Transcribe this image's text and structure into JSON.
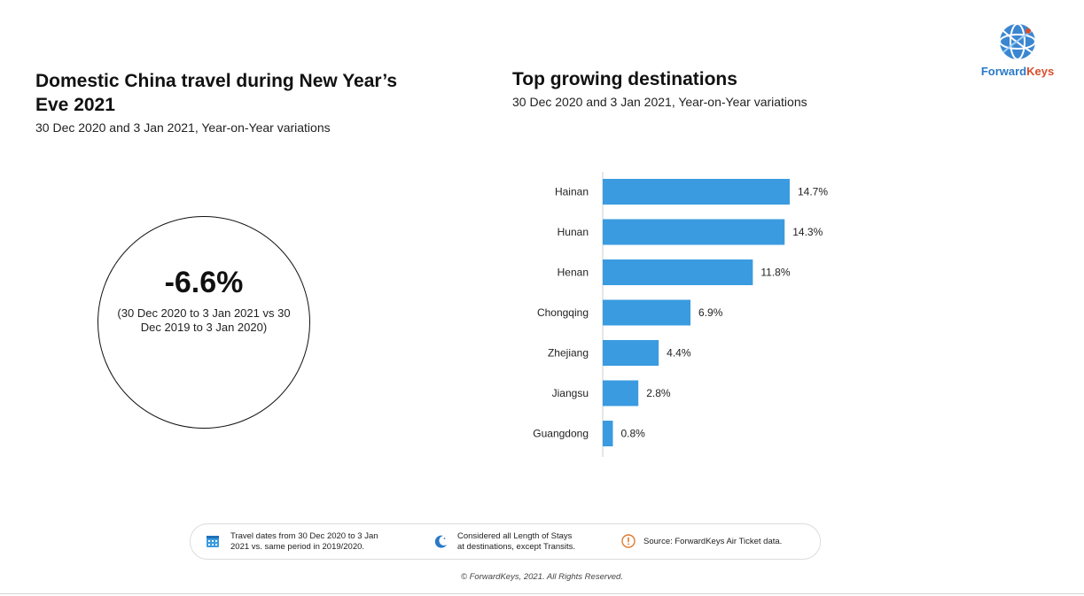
{
  "left_panel": {
    "title": "Domestic China travel during New Year’s Eve 2021",
    "subtitle": "30 Dec 2020 and 3 Jan 2021, Year-on-Year variations",
    "kpi_value": "-6.6%",
    "kpi_note": "(30 Dec 2020 to 3 Jan 2021 vs 30 Dec 2019 to 3 Jan 2020)"
  },
  "logo": {
    "part1": "Forward",
    "part2": "Keys",
    "colors": {
      "forward": "#2a79c7",
      "keys": "#d94e2e"
    }
  },
  "chart_data": {
    "type": "bar",
    "orientation": "horizontal",
    "title": "Top growing destinations",
    "subtitle": "30 Dec 2020 and 3 Jan 2021, Year-on-Year variations",
    "categories": [
      "Hainan",
      "Hunan",
      "Henan",
      "Chongqing",
      "Zhejiang",
      "Jiangsu",
      "Guangdong"
    ],
    "values": [
      14.7,
      14.3,
      11.8,
      6.9,
      4.4,
      2.8,
      0.8
    ],
    "value_labels": [
      "14.7%",
      "14.3%",
      "11.8%",
      "6.9%",
      "4.4%",
      "2.8%",
      "0.8%"
    ],
    "unit": "%",
    "bar_color": "#3a9be0",
    "grid": false,
    "legend": false
  },
  "footer": {
    "dates_text": [
      "Travel dates from 30 Dec 2020 to 3 Jan",
      "2021 vs. same period in 2019/2020."
    ],
    "stays_text": [
      "Considered all Length of Stays",
      "at destinations, except Transits."
    ],
    "source_text": "Source: ForwardKeys Air Ticket data.",
    "copyright": "© ForwardKeys, 2021. All Rights Reserved.",
    "icons": [
      "calendar-icon",
      "moon-icon",
      "alert-icon"
    ],
    "colors": {
      "calendar": "#3a9be0",
      "moon": "#2a79c7",
      "alert": "#e07a2e"
    }
  }
}
